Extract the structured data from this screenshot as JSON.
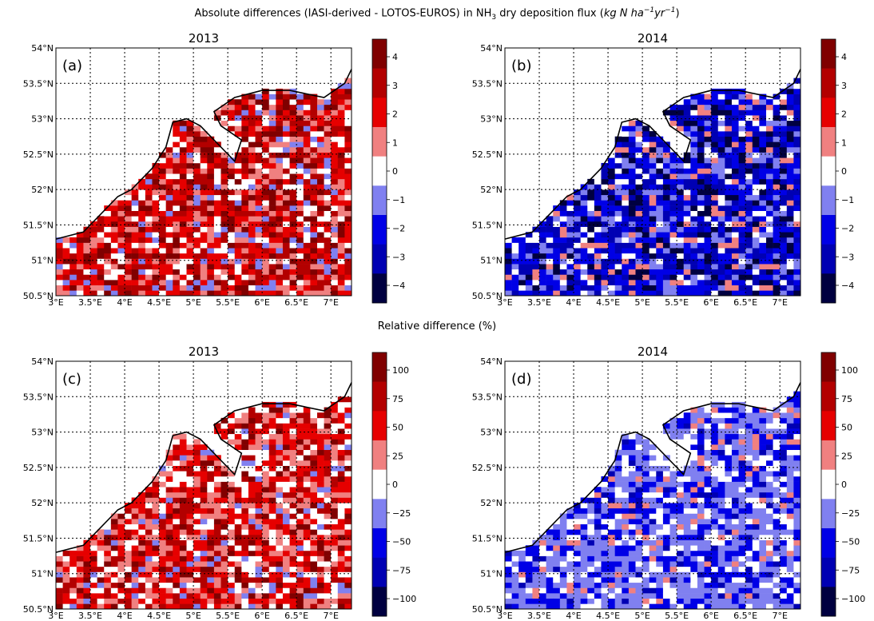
{
  "suptitle_pre": "Absolute differences (IASI-derived - LOTOS-EUROS) in NH",
  "suptitle_sub": "3",
  "suptitle_post": " dry  deposition flux (",
  "suptitle_unit": "kg N ha",
  "suptitle_exp1": "−1",
  "suptitle_unit2": "yr",
  "suptitle_exp2": "−1",
  "suptitle_close": ")",
  "midtitle": "Relative difference (%)",
  "colors": {
    "dark_red": "#800000",
    "red2": "#b30000",
    "red": "#e60000",
    "light_red": "#f08080",
    "white": "#ffffff",
    "light_blue": "#8080f0",
    "blue": "#0000e6",
    "blue2": "#0000b3",
    "dark_blue": "#000040"
  },
  "map": {
    "lat_ticks": [
      "54°N",
      "53.5°N",
      "53°N",
      "52.5°N",
      "52°N",
      "51.5°N",
      "51°N",
      "50.5°N"
    ],
    "lon_ticks": [
      "3°E",
      "3.5°E",
      "4°E",
      "4.5°E",
      "5°E",
      "5.5°E",
      "6°E",
      "6.5°E",
      "7°E"
    ],
    "lat_range": [
      50.5,
      54.0
    ],
    "lon_range": [
      3.0,
      7.3
    ]
  },
  "panels": [
    {
      "label": "(a)",
      "title": "2013",
      "cbar_ticks": [
        "4",
        "3",
        "2",
        "1",
        "0",
        "−1",
        "−2",
        "−3",
        "−4"
      ],
      "trend": "positive"
    },
    {
      "label": "(b)",
      "title": "2014",
      "cbar_ticks": [
        "4",
        "3",
        "2",
        "1",
        "0",
        "−1",
        "−2",
        "−3",
        "−4"
      ],
      "trend": "negative"
    },
    {
      "label": "(c)",
      "title": "2013",
      "cbar_ticks": [
        "100",
        "75",
        "50",
        "25",
        "0",
        "−25",
        "−50",
        "−75",
        "−100"
      ],
      "trend": "positive_rel"
    },
    {
      "label": "(d)",
      "title": "2014",
      "cbar_ticks": [
        "100",
        "75",
        "50",
        "25",
        "0",
        "−25",
        "−50",
        "−75",
        "−100"
      ],
      "trend": "negative_rel"
    }
  ]
}
